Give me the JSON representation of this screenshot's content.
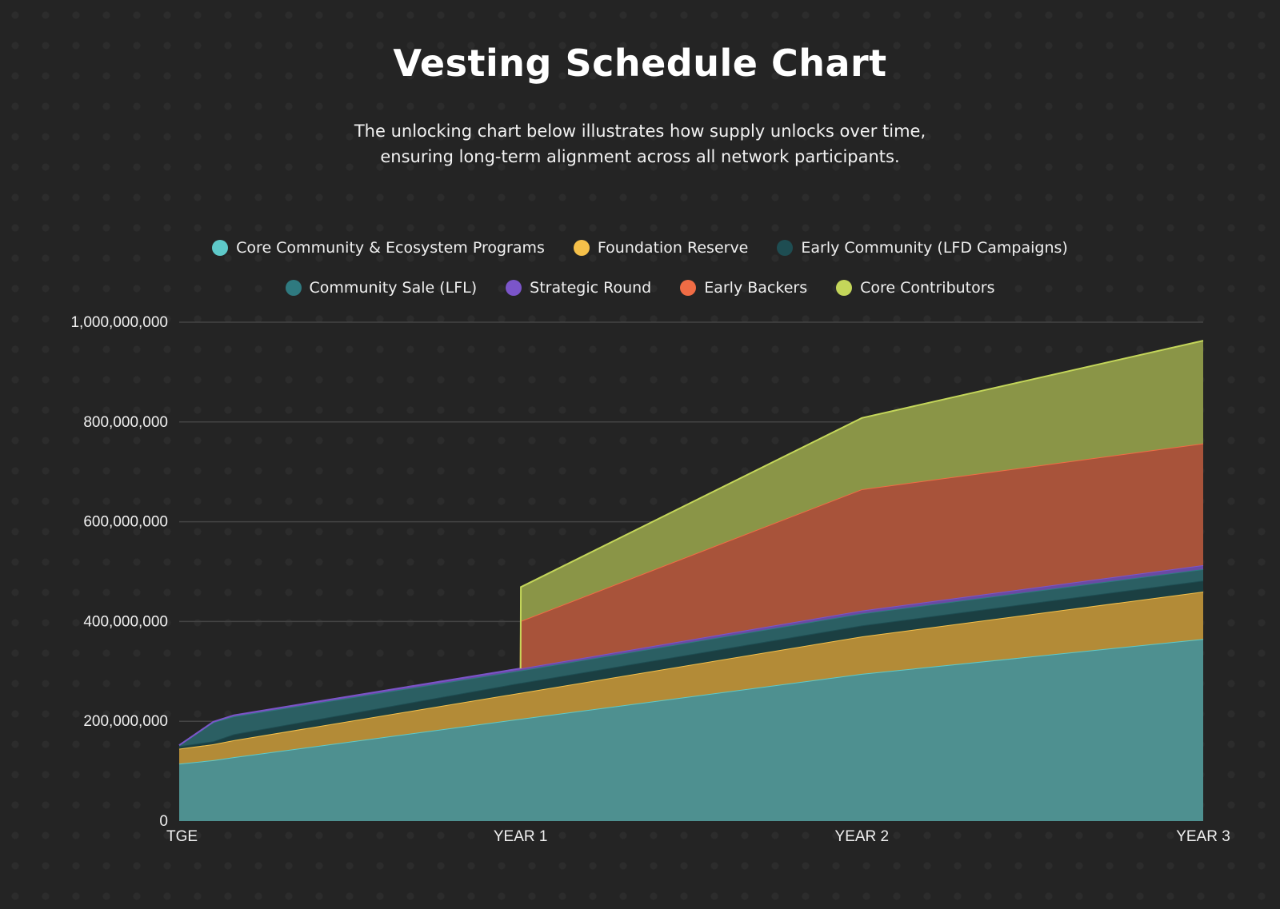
{
  "header": {
    "title": "Vesting Schedule Chart",
    "subtitle_line1": "The unlocking chart below illustrates how supply unlocks over time,",
    "subtitle_line2": "ensuring long-term alignment across all network participants."
  },
  "chart_data": {
    "type": "area",
    "stacked": true,
    "x": [
      0,
      0.1,
      0.16,
      1.0,
      1.001,
      2.0,
      3.0
    ],
    "xticks": [
      {
        "value": 0,
        "label": "TGE"
      },
      {
        "value": 1,
        "label": "YEAR 1"
      },
      {
        "value": 2,
        "label": "YEAR 2"
      },
      {
        "value": 3,
        "label": "YEAR 3"
      }
    ],
    "ylim": [
      0,
      1000000000
    ],
    "yticks": [
      0,
      200000000,
      400000000,
      600000000,
      800000000,
      1000000000
    ],
    "ytick_labels": [
      "0",
      "200,000,000",
      "400,000,000",
      "600,000,000",
      "800,000,000",
      "1,000,000,000"
    ],
    "grid": true,
    "legend_position": "top",
    "series": [
      {
        "name": "Core Community & Ecosystem Programs",
        "color": "#5ec9c9",
        "fill": "#4e9090",
        "values": [
          115000000,
          122000000,
          128000000,
          205000000,
          205000000,
          295000000,
          365000000
        ]
      },
      {
        "name": "Foundation Reserve",
        "color": "#f5c04a",
        "fill": "#b38b37",
        "values": [
          30000000,
          32000000,
          34000000,
          52000000,
          52000000,
          75000000,
          95000000
        ]
      },
      {
        "name": "Early Community (LFD Campaigns)",
        "color": "#1e4d52",
        "fill": "#1b3f42",
        "values": [
          5000000,
          6000000,
          12000000,
          20000000,
          20000000,
          22000000,
          22000000
        ]
      },
      {
        "name": "Community Sale (LFL)",
        "color": "#2f7a80",
        "fill": "#2b5f63",
        "values": [
          2000000,
          38000000,
          36000000,
          25000000,
          25000000,
          24000000,
          23000000
        ]
      },
      {
        "name": "Strategic Round",
        "color": "#7b55c9",
        "fill": "#6a4aa4",
        "values": [
          0,
          1000000,
          2000000,
          4000000,
          4000000,
          6000000,
          8000000
        ]
      },
      {
        "name": "Early Backers",
        "color": "#f06c45",
        "fill": "#a8533a",
        "values": [
          0,
          0,
          0,
          0,
          95000000,
          243000000,
          244000000
        ]
      },
      {
        "name": "Core Contributors",
        "color": "#c4d65a",
        "fill": "#8a9547",
        "values": [
          0,
          0,
          0,
          0,
          68000000,
          143000000,
          206000000
        ]
      }
    ]
  }
}
